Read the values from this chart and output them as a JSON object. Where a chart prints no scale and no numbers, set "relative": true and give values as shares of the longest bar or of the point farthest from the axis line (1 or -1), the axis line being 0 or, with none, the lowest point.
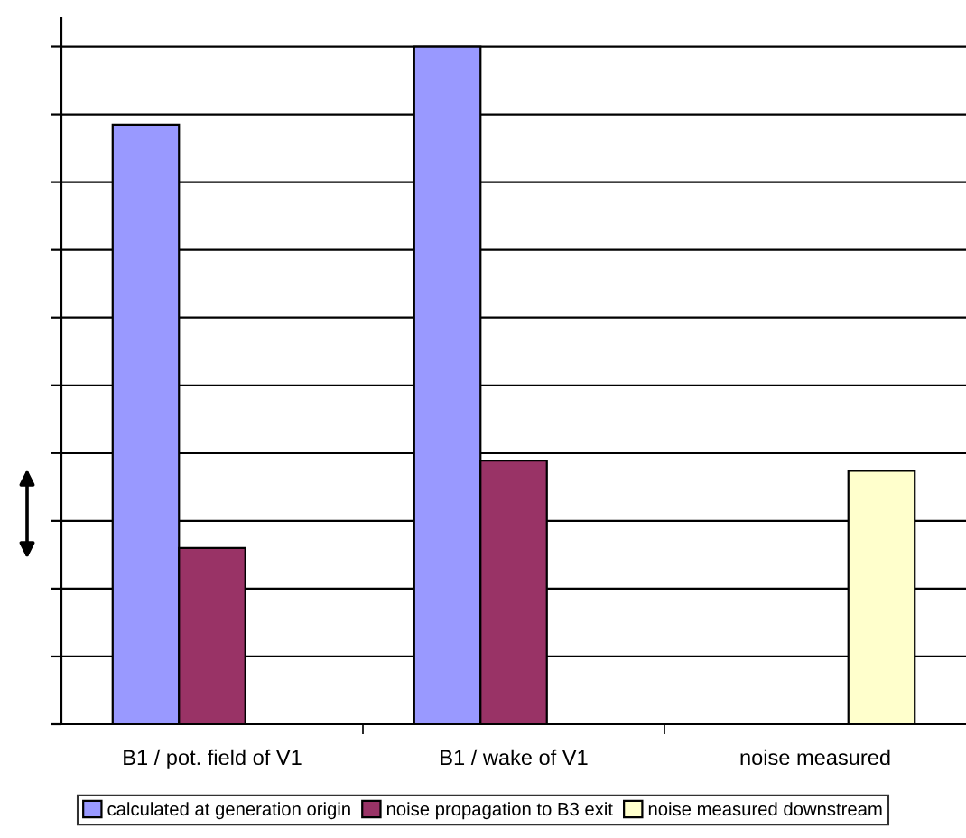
{
  "chart_data": {
    "type": "bar",
    "relative": true,
    "categories": [
      "B1 / pot. field of V1",
      "B1 / wake of V1",
      "noise measured"
    ],
    "series": [
      {
        "name": "calculated at generation origin",
        "color": "#9999ff",
        "values": [
          0.885,
          1,
          null
        ]
      },
      {
        "name": "noise propagation to B3 exit",
        "color": "#993366",
        "values": [
          0.26,
          0.389,
          null
        ]
      },
      {
        "name": "noise measured downstream",
        "color": "#ffffcc",
        "values": [
          null,
          null,
          0.374
        ]
      }
    ],
    "grid": "y",
    "legend": "bottom"
  }
}
